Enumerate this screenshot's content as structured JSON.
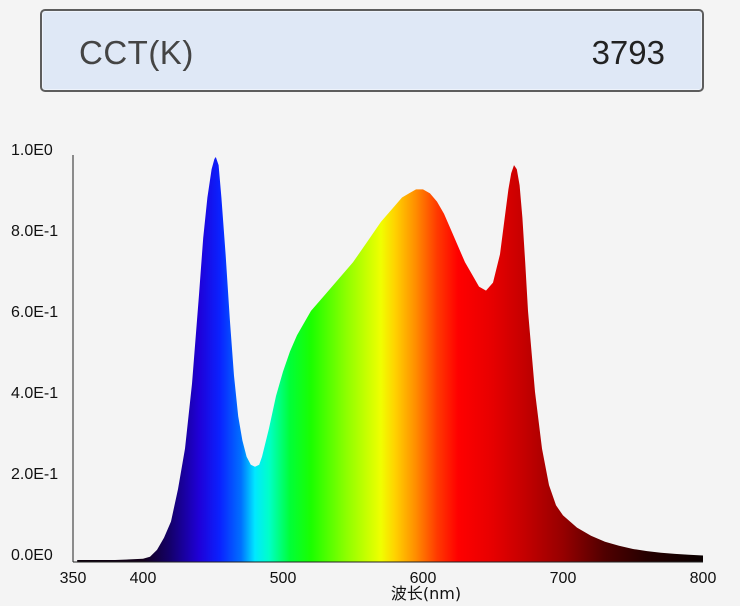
{
  "cct": {
    "label": "CCT(K)",
    "value": "3793"
  },
  "chart_data": {
    "type": "area",
    "title": "",
    "xlabel": "波长(nm)",
    "ylabel": "",
    "xlim": [
      350,
      800
    ],
    "ylim": [
      0,
      1.0
    ],
    "x_ticks": [
      350,
      400,
      500,
      600,
      700,
      800
    ],
    "x_tick_labels": [
      "350",
      "400",
      "500",
      "600",
      "700",
      "800"
    ],
    "y_ticks": [
      0,
      0.2,
      0.4,
      0.6,
      0.8,
      1.0
    ],
    "y_tick_labels": [
      "0.0E0",
      "2.0E-1",
      "4.0E-1",
      "6.0E-1",
      "8.0E-1",
      "1.0E0"
    ],
    "grid": false,
    "fill": "wavelength-spectrum colors",
    "series": [
      {
        "x": [
          353,
          380,
          400,
          405,
          410,
          415,
          420,
          425,
          430,
          435,
          440,
          443,
          446,
          449,
          451,
          452,
          454,
          456,
          459,
          462,
          465,
          468,
          471,
          474,
          477,
          480,
          483,
          485,
          490,
          495,
          500,
          505,
          510,
          520,
          530,
          540,
          550,
          560,
          570,
          580,
          585,
          590,
          595,
          600,
          605,
          610,
          615,
          620,
          625,
          630,
          635,
          640,
          645,
          650,
          655,
          658,
          661,
          663,
          665,
          667,
          669,
          671,
          673,
          675,
          680,
          685,
          690,
          695,
          700,
          710,
          720,
          730,
          740,
          750,
          760,
          770,
          780,
          790,
          800
        ],
        "y": [
          0.005,
          0.005,
          0.008,
          0.013,
          0.03,
          0.06,
          0.1,
          0.18,
          0.28,
          0.44,
          0.66,
          0.8,
          0.9,
          0.97,
          0.995,
          1.0,
          0.98,
          0.9,
          0.76,
          0.6,
          0.46,
          0.36,
          0.3,
          0.26,
          0.24,
          0.235,
          0.24,
          0.26,
          0.33,
          0.41,
          0.47,
          0.52,
          0.56,
          0.62,
          0.66,
          0.7,
          0.74,
          0.79,
          0.84,
          0.88,
          0.9,
          0.91,
          0.92,
          0.92,
          0.91,
          0.89,
          0.86,
          0.82,
          0.78,
          0.74,
          0.71,
          0.68,
          0.67,
          0.69,
          0.76,
          0.84,
          0.92,
          0.96,
          0.98,
          0.97,
          0.93,
          0.85,
          0.74,
          0.62,
          0.42,
          0.28,
          0.19,
          0.14,
          0.115,
          0.085,
          0.065,
          0.05,
          0.04,
          0.032,
          0.027,
          0.023,
          0.02,
          0.018,
          0.016
        ]
      }
    ]
  }
}
